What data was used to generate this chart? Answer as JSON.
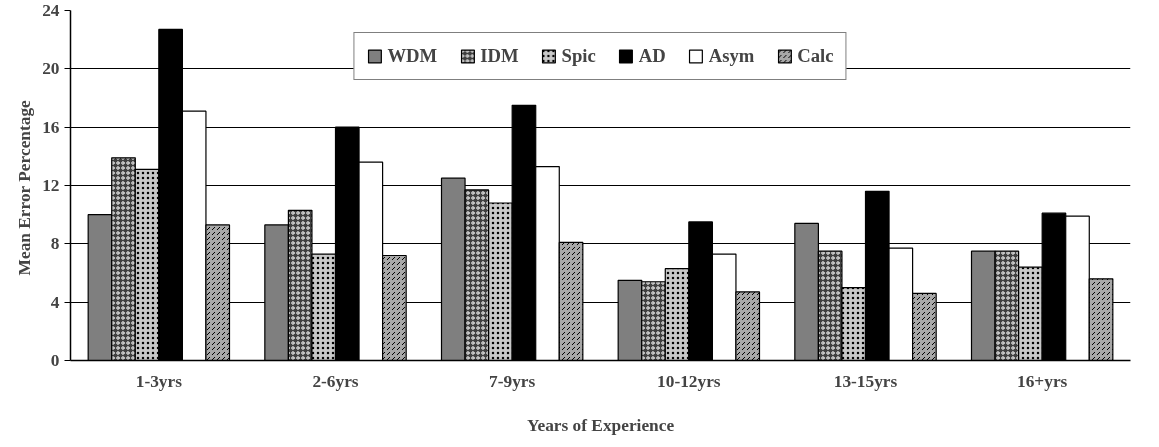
{
  "chart_data": {
    "type": "bar",
    "xlabel": "Years of Experience",
    "ylabel": "Mean  Error Percentage",
    "categories": [
      "1-3yrs",
      "2-6yrs",
      "7-9yrs",
      "10-12yrs",
      "13-15yrs",
      "16+yrs"
    ],
    "series": [
      {
        "name": "WDM",
        "color": "#7f7f7f",
        "values": [
          10.0,
          9.3,
          12.5,
          5.5,
          9.4,
          7.5
        ]
      },
      {
        "name": "IDM",
        "color": "#404040",
        "values": [
          13.9,
          10.3,
          11.7,
          5.4,
          7.5,
          7.5
        ]
      },
      {
        "name": "Spic",
        "color": "#c8c8c8",
        "values": [
          13.1,
          7.3,
          10.8,
          6.3,
          5.0,
          6.4
        ]
      },
      {
        "name": "AD",
        "color": "#000000",
        "values": [
          22.7,
          16.0,
          17.5,
          9.5,
          11.6,
          10.1
        ]
      },
      {
        "name": "Asym",
        "color": "#ffffff",
        "values": [
          17.1,
          13.6,
          13.3,
          7.3,
          7.7,
          9.9
        ]
      },
      {
        "name": "Calc",
        "color": "#a8a8a8",
        "values": [
          9.3,
          7.2,
          8.1,
          4.7,
          4.6,
          5.6
        ]
      }
    ],
    "ylim": [
      0,
      24
    ],
    "yticks": [
      0,
      4,
      8,
      12,
      16,
      20,
      24
    ],
    "grid": "y",
    "legend": "top"
  }
}
